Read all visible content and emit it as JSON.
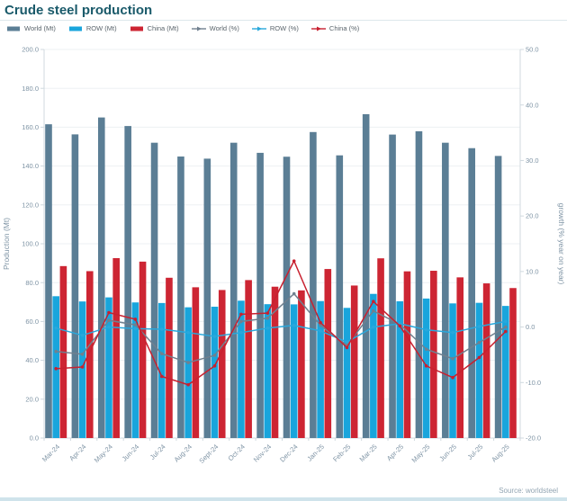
{
  "header": {
    "title": "Crude steel production"
  },
  "legend": {
    "items": [
      {
        "label": "World (Mt)",
        "type": "bar",
        "color": "#5b7e95"
      },
      {
        "label": "ROW (Mt)",
        "type": "bar",
        "color": "#19a5dc"
      },
      {
        "label": "China (Mt)",
        "type": "bar",
        "color": "#cd2533"
      },
      {
        "label": "World (%)",
        "type": "line",
        "color": "#70808f"
      },
      {
        "label": "ROW (%)",
        "type": "line",
        "color": "#29a8dc"
      },
      {
        "label": "China (%)",
        "type": "line",
        "color": "#c8202f"
      }
    ]
  },
  "chart_data": {
    "type": "combo-bar-line",
    "title": "Crude steel production",
    "categories": [
      "Mar-24",
      "Apr-24",
      "May-24",
      "Jun-24",
      "Jul-24",
      "Aug-24",
      "Sept-24",
      "Oct-24",
      "Nov-24",
      "Dec-24",
      "Jan-25",
      "Feb-25",
      "Mar-25",
      "Apr-25",
      "May-25",
      "Jun-25",
      "Jul-25",
      "Aug-25"
    ],
    "bar_series": [
      {
        "name": "World (Mt)",
        "color": "#5b7e95",
        "values": [
          161.5,
          156.3,
          165.0,
          160.6,
          152.0,
          144.9,
          143.8,
          152.0,
          146.8,
          144.8,
          157.5,
          145.5,
          166.7,
          156.2,
          157.9,
          152.0,
          149.2,
          145.2
        ]
      },
      {
        "name": "ROW (Mt)",
        "color": "#19a5dc",
        "values": [
          73.0,
          70.3,
          72.4,
          69.8,
          69.5,
          67.3,
          67.6,
          70.7,
          68.9,
          68.8,
          70.5,
          67.0,
          74.2,
          70.4,
          71.8,
          69.3,
          69.6,
          68.0
        ]
      },
      {
        "name": "China (Mt)",
        "color": "#cd2533",
        "values": [
          88.5,
          85.9,
          92.6,
          90.8,
          82.5,
          77.6,
          76.2,
          81.3,
          77.9,
          76.0,
          87.0,
          78.5,
          92.5,
          85.8,
          86.1,
          82.7,
          79.6,
          77.2
        ]
      }
    ],
    "line_series": [
      {
        "name": "World (%)",
        "color": "#70808f",
        "values": [
          -4.4,
          -4.9,
          1.2,
          0.4,
          -4.8,
          -6.4,
          -5.1,
          1.0,
          1.6,
          6.0,
          0.3,
          -3.3,
          2.9,
          0.5,
          -4.0,
          -5.7,
          -2.8,
          0.0
        ]
      },
      {
        "name": "ROW (%)",
        "color": "#29a8dc",
        "values": [
          -0.2,
          -1.5,
          0.0,
          -0.3,
          -0.4,
          -1.0,
          -1.7,
          -1.0,
          -0.2,
          0.3,
          -0.7,
          -2.7,
          0.0,
          0.6,
          -0.5,
          -1.0,
          0.1,
          1.0
        ]
      },
      {
        "name": "China (%)",
        "color": "#c8202f",
        "values": [
          -7.5,
          -7.2,
          2.6,
          1.4,
          -8.9,
          -10.4,
          -7.0,
          2.3,
          2.5,
          11.9,
          0.8,
          -3.7,
          4.6,
          0.2,
          -7.0,
          -9.1,
          -5.5,
          -0.8
        ]
      }
    ],
    "left_axis": {
      "label": "Production (Mt)",
      "min": 0,
      "max": 200,
      "step": 20,
      "tick_format_decimals": 1
    },
    "right_axis": {
      "label": "growth (% year on year)",
      "min": -20,
      "max": 50,
      "step": 10,
      "tick_format_decimals": 1
    },
    "grid": true,
    "legend_position": "top"
  },
  "source": {
    "text": "Source: worldsteel"
  },
  "colors": {
    "title": "#1a5a6a",
    "axis_text": "#7f94a5",
    "axis_line": "#d0d9df",
    "gridline": "#edf0f3",
    "legend_text": "#5a646b",
    "source_text": "#92a4b2",
    "bottom_strip": "#cfe3eb"
  }
}
